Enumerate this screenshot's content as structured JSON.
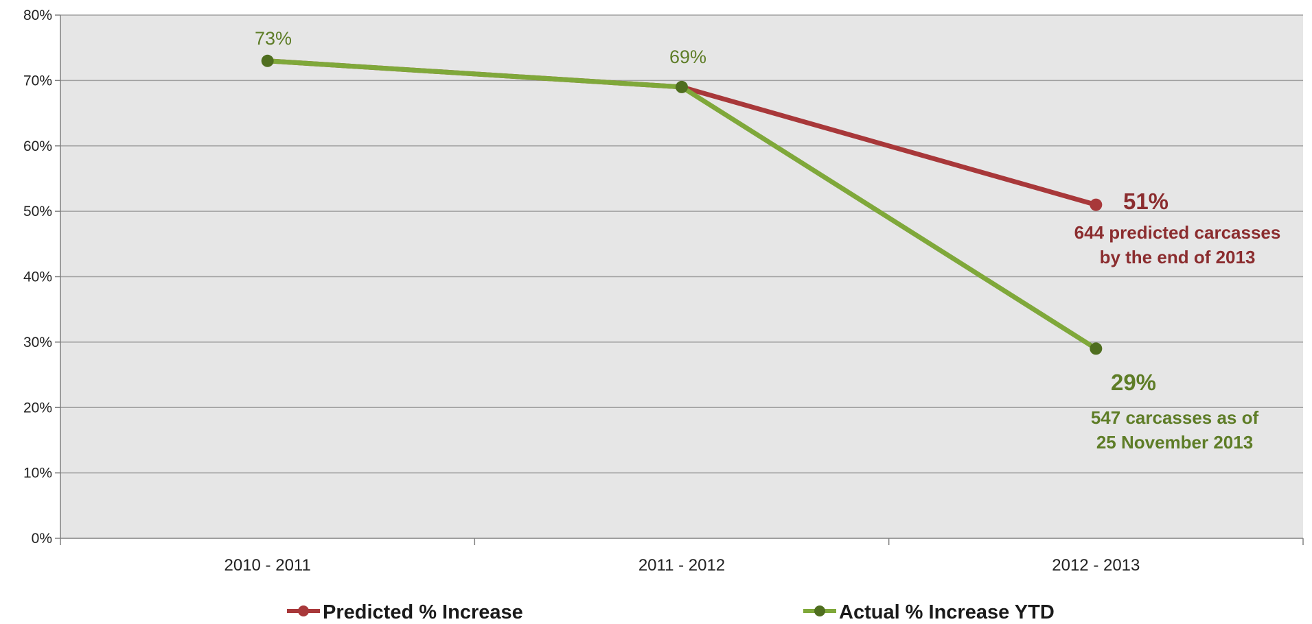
{
  "chart_data": {
    "type": "line",
    "categories": [
      "2010 - 2011",
      "2011 - 2012",
      "2012 - 2013"
    ],
    "series": [
      {
        "name": "Predicted % Increase",
        "color": "#a8383a",
        "values": [
          73,
          69,
          51
        ]
      },
      {
        "name": "Actual % Increase YTD",
        "color": "#7fa83a",
        "marker_color": "#4f6e1f",
        "values": [
          73,
          69,
          29
        ]
      }
    ],
    "ylim": [
      0,
      80
    ],
    "yticks": [
      0,
      10,
      20,
      30,
      40,
      50,
      60,
      70,
      80
    ],
    "ytick_labels": [
      "0%",
      "10%",
      "20%",
      "30%",
      "40%",
      "50%",
      "60%",
      "70%",
      "80%"
    ],
    "grid": true,
    "legend_position": "bottom",
    "annotations": {
      "first_point": "73%",
      "second_point": "69%",
      "predicted_end_value": "51%",
      "predicted_end_note_line1": "644 predicted carcasses",
      "predicted_end_note_line2": "by the end of 2013",
      "actual_end_value": "29%",
      "actual_end_note_line1": "547 carcasses as of",
      "actual_end_note_line2": "25 November 2013"
    },
    "colors": {
      "plot_background": "#e6e6e6",
      "gridline": "#a0a0a0",
      "predicted_text": "#8b2d2f",
      "actual_text": "#5e7d27"
    }
  }
}
